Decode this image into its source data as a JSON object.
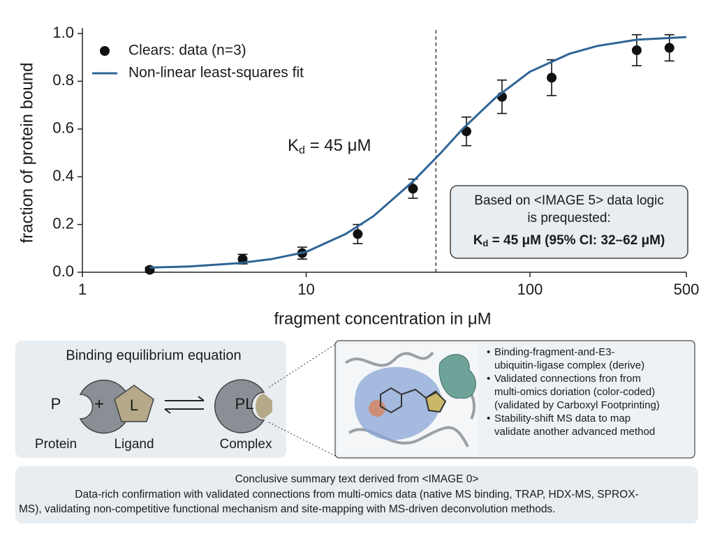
{
  "chart_data": {
    "type": "scatter",
    "xlabel": "fragment concentration in μM",
    "ylabel": "fraction of protein bound",
    "xscale": "log",
    "xlim": [
      1,
      500
    ],
    "xticks": [
      1,
      10,
      100,
      500
    ],
    "ylim": [
      0,
      1
    ],
    "yticks": [
      {
        "value": 0,
        "label": "0.0"
      },
      0.2,
      0.4,
      0.6,
      0.8,
      {
        "value": 1,
        "label": "1.0"
      }
    ],
    "legend": "upper left",
    "series": [
      {
        "name": "Clears: data (n=3)",
        "color": "#111111",
        "x": [
          2,
          5.2,
          9.6,
          17,
          30,
          52,
          75,
          125,
          300,
          420
        ],
        "values": [
          0.01,
          0.055,
          0.08,
          0.16,
          0.35,
          0.59,
          0.735,
          0.815,
          0.93,
          0.94
        ],
        "errors": [
          0.01,
          0.02,
          0.025,
          0.04,
          0.04,
          0.06,
          0.07,
          0.075,
          0.065,
          0.055
        ]
      },
      {
        "name": "Non-linear least-squares fit",
        "color": "#2f6496",
        "x": [
          2,
          3,
          5,
          7,
          10,
          15,
          20,
          30,
          40,
          50,
          70,
          100,
          150,
          200,
          300,
          500
        ],
        "values": [
          0.02,
          0.024,
          0.038,
          0.055,
          0.085,
          0.16,
          0.235,
          0.38,
          0.5,
          0.6,
          0.73,
          0.84,
          0.915,
          0.948,
          0.974,
          0.985
        ]
      }
    ],
    "vline": 38,
    "kd_label": {
      "main": "K",
      "sub": "d",
      "rest": " = 45 μM"
    },
    "annotation": {
      "lines": [
        "Based on <IMAGE 5> data logic",
        "is prequested:"
      ],
      "result": {
        "main": "K",
        "sub": "d",
        "rest": " = 45 μM (95% CI: 32–62 μM)"
      }
    }
  },
  "equation_panel": {
    "title": "Binding equilibrium equation",
    "protein": "P",
    "plus": "+",
    "ligand": "L",
    "complex": "PL",
    "labels": [
      "Protein",
      "Ligand",
      "Complex"
    ]
  },
  "structure_panel": {
    "bullets": [
      [
        "Binding-fragment-and-E3-",
        "ubiquitin-ligase complex (derive)"
      ],
      [
        "Validated connections fron from",
        "multi-omics doriation (color-coded)",
        "(validated by Carboxyl Footprinting)"
      ],
      [
        "Stability-shift MS data to map",
        "validate another advanced method"
      ]
    ]
  },
  "summary": {
    "title": "Conclusive summary text derived from <IMAGE 0>",
    "lines": [
      "Data-rich confirmation with validated connections from multi-omics data (native MS binding, TRAP, HDX-MS, SPROX-",
      "MS), validating non-competitive functional mechanism and site-mapping with MS-driven deconvolution methods."
    ]
  }
}
